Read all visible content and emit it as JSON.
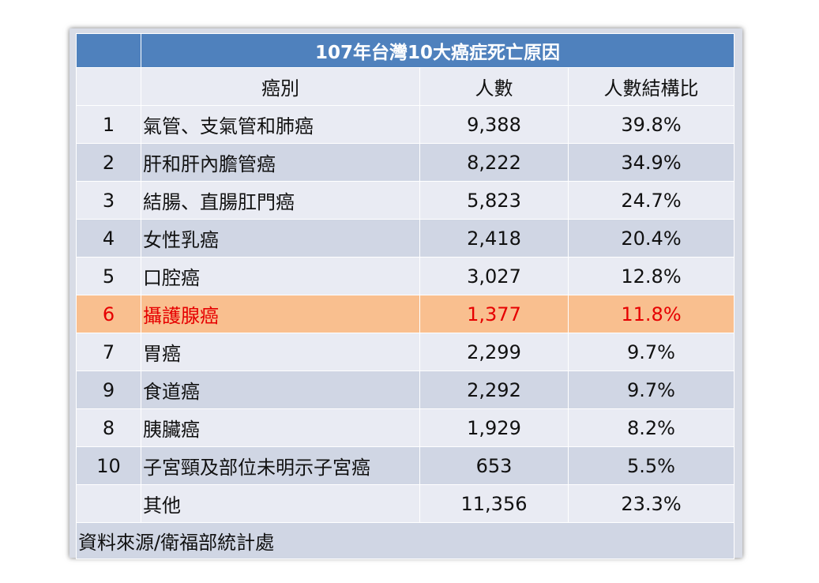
{
  "table": {
    "title": "107年台灣10大癌症死亡原因",
    "headers": {
      "rank": "",
      "cancer": "癌別",
      "count": "人數",
      "ratio": "人數結構比"
    },
    "rows": [
      {
        "rank": "1",
        "cancer": "氣管、支氣管和肺癌",
        "count": "9,388",
        "ratio": "39.8%"
      },
      {
        "rank": "2",
        "cancer": "肝和肝內膽管癌",
        "count": "8,222",
        "ratio": "34.9%"
      },
      {
        "rank": "3",
        "cancer": "結腸、直腸肛門癌",
        "count": "5,823",
        "ratio": "24.7%"
      },
      {
        "rank": "4",
        "cancer": "女性乳癌",
        "count": "2,418",
        "ratio": "20.4%"
      },
      {
        "rank": "5",
        "cancer": "口腔癌",
        "count": "3,027",
        "ratio": "12.8%"
      },
      {
        "rank": "6",
        "cancer": "攝護腺癌",
        "count": "1,377",
        "ratio": "11.8%"
      },
      {
        "rank": "7",
        "cancer": "胃癌",
        "count": "2,299",
        "ratio": "9.7%"
      },
      {
        "rank": "9",
        "cancer": "食道癌",
        "count": "2,292",
        "ratio": "9.7%"
      },
      {
        "rank": "8",
        "cancer": "胰臟癌",
        "count": "1,929",
        "ratio": "8.2%"
      },
      {
        "rank": "10",
        "cancer": "子宮頸及部位未明示子宮癌",
        "count": "653",
        "ratio": "5.5%"
      },
      {
        "rank": "",
        "cancer": "其他",
        "count": "11,356",
        "ratio": "23.3%"
      }
    ],
    "source": "資料來源/衛福部統計處"
  },
  "colors": {
    "title_bg": "#4f81bd",
    "row_light": "#e9ebf3",
    "row_dark": "#d0d6e4",
    "highlight_bg": "#f9bf8f",
    "highlight_text": "#e60000"
  }
}
